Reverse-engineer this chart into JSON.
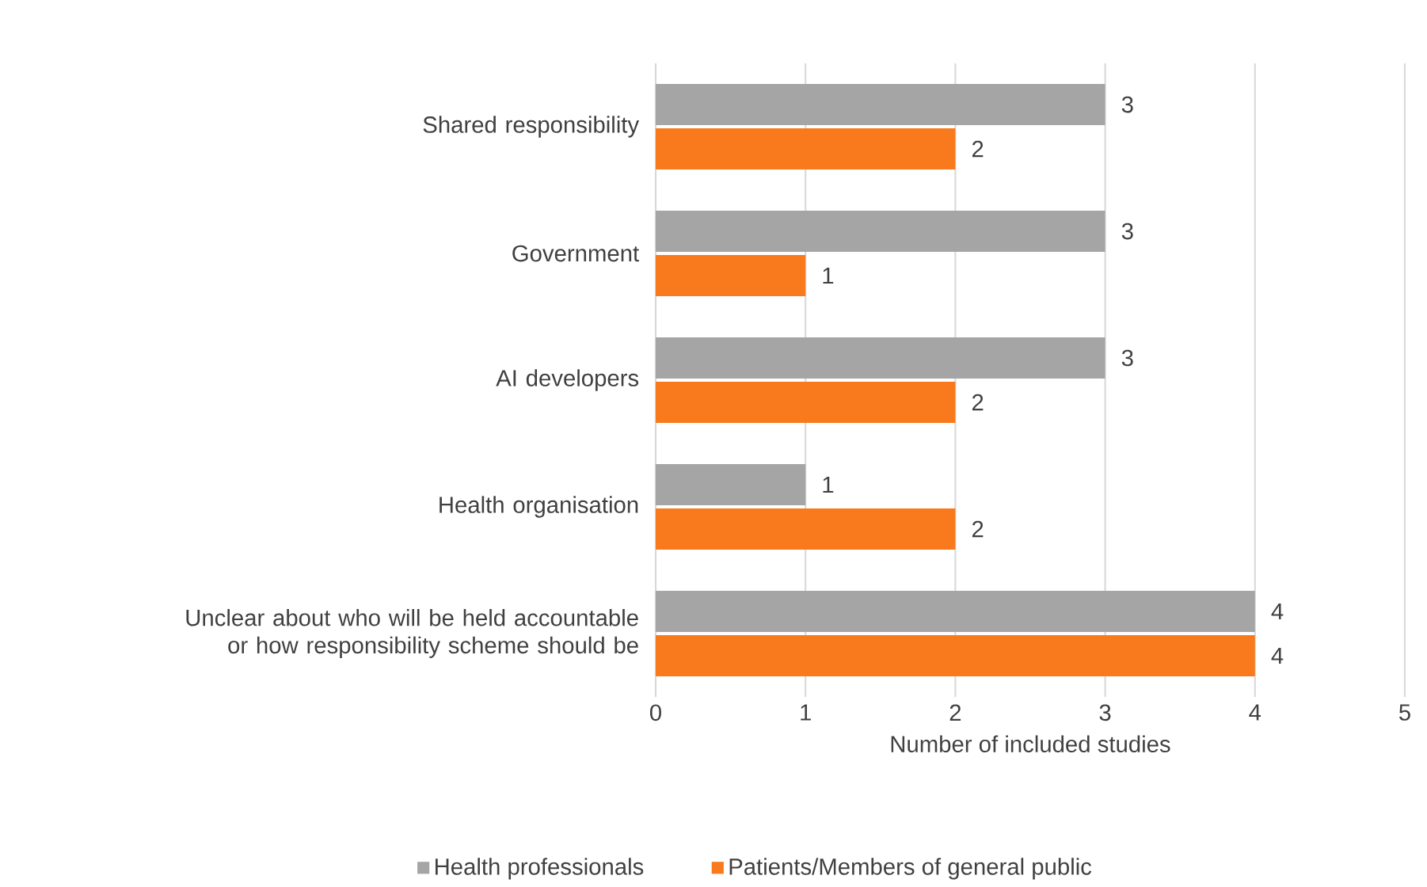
{
  "chart_data": {
    "type": "bar",
    "orientation": "horizontal",
    "xlabel": "Number of included studies",
    "categories": [
      "Shared responsibility",
      "Government",
      "AI developers",
      "Health organisation",
      "Unclear about who will be held accountable or how responsibility scheme should be"
    ],
    "series": [
      {
        "name": "Health professionals",
        "color": "#a5a5a5",
        "values": [
          3,
          3,
          3,
          1,
          4
        ]
      },
      {
        "name": "Patients/Members of general public",
        "color": "#f87a1c",
        "values": [
          2,
          1,
          2,
          2,
          4
        ]
      }
    ],
    "xlim": [
      0,
      5
    ],
    "xticks": [
      0,
      1,
      2,
      3,
      4,
      5
    ],
    "grid": "x",
    "legend": "bottom",
    "data_labels": true
  }
}
